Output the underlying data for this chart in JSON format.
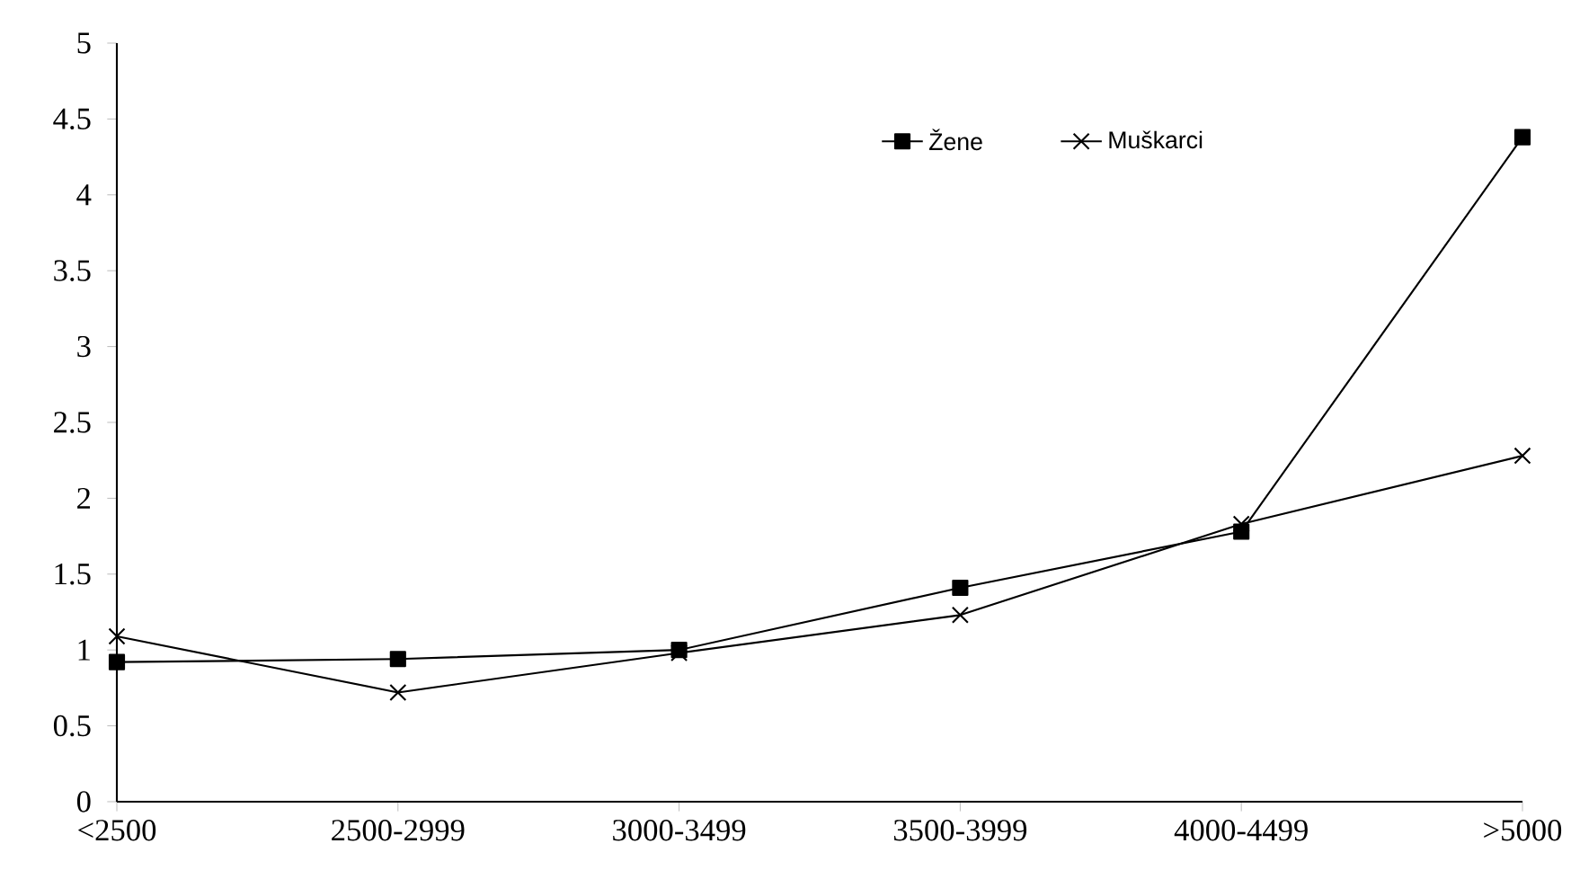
{
  "chart_data": {
    "type": "line",
    "categories": [
      "<2500",
      "2500-2999",
      "3000-3499",
      "3500-3999",
      "4000-4499",
      ">5000"
    ],
    "series": [
      {
        "name": "Žene",
        "color": "#000000",
        "marker": "square",
        "values": [
          0.92,
          0.94,
          1.0,
          1.41,
          1.78,
          4.38
        ]
      },
      {
        "name": "Muškarci",
        "color": "#000000",
        "marker": "cross",
        "values": [
          1.09,
          0.72,
          0.98,
          1.23,
          1.83,
          2.28
        ]
      }
    ],
    "ylim": [
      0,
      5
    ],
    "yticks": [
      0,
      0.5,
      1,
      1.5,
      2,
      2.5,
      3,
      3.5,
      4,
      4.5,
      5
    ],
    "legend": "top",
    "grid": false,
    "line_style": "solid"
  }
}
